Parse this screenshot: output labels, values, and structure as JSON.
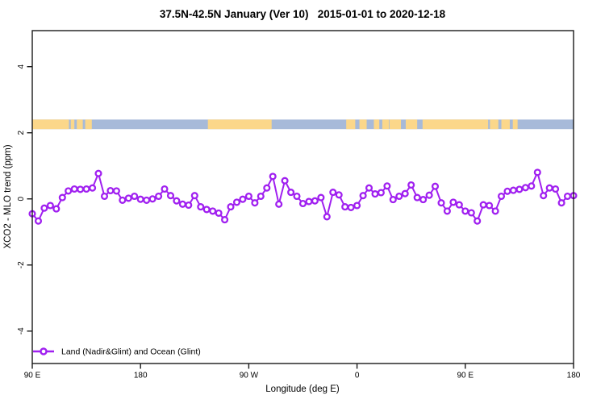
{
  "title": "37.5N-42.5N January (Ver 10)   2015-01-01 to 2020-12-18",
  "colors": {
    "series": "#A020F0",
    "marker_fill": "#ffffff",
    "land": "#FBD78A",
    "ocean": "#A7BAD9",
    "axis": "#1a1a1a",
    "background": "#ffffff"
  },
  "legend": {
    "label": "Land (Nadir&Glint) and Ocean (Glint)",
    "position": "bottom-left-inside"
  },
  "chart_data": {
    "type": "line",
    "title": "37.5N-42.5N January (Ver 10)   2015-01-01 to 2020-12-18",
    "xlabel": "Longitude (deg E)",
    "ylabel": "XCO2 - MLO trend (ppm)",
    "xlim": [
      90,
      540
    ],
    "ylim": [
      -4.98,
      5.09
    ],
    "grid": false,
    "x_ticks": [
      {
        "value": 90,
        "label": "90 E"
      },
      {
        "value": 180,
        "label": "180"
      },
      {
        "value": 270,
        "label": "90 W"
      },
      {
        "value": 360,
        "label": "0"
      },
      {
        "value": 450,
        "label": "90 E"
      },
      {
        "value": 540,
        "label": "180"
      }
    ],
    "y_ticks": [
      {
        "value": 4,
        "label": "4"
      },
      {
        "value": 2,
        "label": "2"
      },
      {
        "value": 0,
        "label": "0"
      },
      {
        "value": -2,
        "label": "-2"
      },
      {
        "value": -4,
        "label": "-4"
      }
    ],
    "series": [
      {
        "name": "Land (Nadir&Glint) and Ocean (Glint)",
        "color": "#A020F0",
        "marker": "open-circle",
        "x": [
          90,
          95,
          100,
          105,
          110,
          115,
          120,
          125,
          130,
          135,
          140,
          145,
          150,
          155,
          160,
          165,
          170,
          175,
          180,
          185,
          190,
          195,
          200,
          205,
          210,
          215,
          220,
          225,
          230,
          235,
          240,
          245,
          250,
          255,
          260,
          265,
          270,
          275,
          280,
          285,
          290,
          295,
          300,
          305,
          310,
          315,
          320,
          325,
          330,
          335,
          340,
          345,
          350,
          355,
          360,
          365,
          370,
          375,
          380,
          385,
          390,
          395,
          400,
          405,
          410,
          415,
          420,
          425,
          430,
          435,
          440,
          445,
          450,
          455,
          460,
          465,
          470,
          475,
          480,
          485,
          490,
          495,
          500,
          505,
          510,
          515,
          520,
          525,
          530,
          535,
          540
        ],
        "y": [
          -0.45,
          -0.67,
          -0.28,
          -0.2,
          -0.3,
          0.04,
          0.24,
          0.3,
          0.29,
          0.3,
          0.33,
          0.77,
          0.08,
          0.25,
          0.24,
          -0.04,
          0.02,
          0.08,
          -0.01,
          -0.04,
          0.0,
          0.08,
          0.3,
          0.1,
          -0.06,
          -0.16,
          -0.19,
          0.1,
          -0.24,
          -0.32,
          -0.37,
          -0.43,
          -0.63,
          -0.24,
          -0.1,
          -0.01,
          0.08,
          -0.12,
          0.08,
          0.33,
          0.68,
          -0.16,
          0.55,
          0.2,
          0.08,
          -0.14,
          -0.08,
          -0.06,
          0.04,
          -0.54,
          0.2,
          0.12,
          -0.24,
          -0.26,
          -0.2,
          0.1,
          0.33,
          0.15,
          0.19,
          0.39,
          -0.02,
          0.08,
          0.16,
          0.42,
          0.04,
          -0.02,
          0.11,
          0.38,
          -0.12,
          -0.37,
          -0.1,
          -0.18,
          -0.37,
          -0.42,
          -0.67,
          -0.18,
          -0.2,
          -0.37,
          0.08,
          0.23,
          0.26,
          0.29,
          0.34,
          0.39,
          0.8,
          0.1,
          0.33,
          0.3,
          -0.12,
          0.08,
          0.1
        ]
      }
    ],
    "map_strip": {
      "description": "land/ocean longitude band",
      "y_range": [
        2.11,
        2.4
      ],
      "ocean_color": "#A7BAD9",
      "land_color": "#FBD78A",
      "land_segments": [
        [
          90,
          120.5
        ],
        [
          122,
          125
        ],
        [
          127,
          132
        ],
        [
          134,
          139.5
        ],
        [
          236,
          289
        ],
        [
          351,
          358.5
        ],
        [
          362,
          368
        ],
        [
          374,
          378.5
        ],
        [
          381,
          386.5
        ],
        [
          387,
          396.5
        ],
        [
          400.5,
          410
        ],
        [
          414.5,
          469
        ],
        [
          470.5,
          477.5
        ],
        [
          480,
          487
        ],
        [
          489.5,
          493.5
        ]
      ]
    }
  }
}
